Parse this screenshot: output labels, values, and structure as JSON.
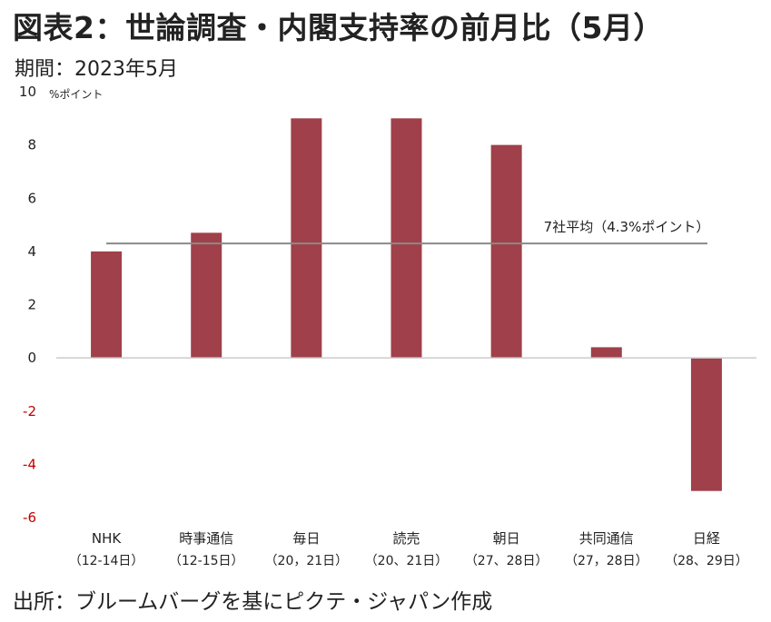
{
  "header": {
    "title": "図表2：世論調査・内閣支持率の前月比（5月）",
    "period": "期間：2023年5月"
  },
  "footer": {
    "source": "出所：ブルームバーグを基にピクテ・ジャパン作成"
  },
  "colors": {
    "bar": "#a0404a",
    "axis": "#cccccc",
    "average_line": "#8a8a8a",
    "negative_tick": "#c00000",
    "text": "#222222"
  },
  "chart_data": {
    "type": "bar",
    "unit_label": "%ポイント",
    "categories": [
      {
        "name": "NHK",
        "dates": "（12-14日）"
      },
      {
        "name": "時事通信",
        "dates": "（12-15日）"
      },
      {
        "name": "毎日",
        "dates": "（20，21日）"
      },
      {
        "name": "読売",
        "dates": "（20、21日）"
      },
      {
        "name": "朝日",
        "dates": "（27、28日）"
      },
      {
        "name": "共同通信",
        "dates": "（27，28日）"
      },
      {
        "name": "日経",
        "dates": "（28、29日）"
      }
    ],
    "values": [
      4,
      4.7,
      9,
      9,
      8,
      0.4,
      -5
    ],
    "ylim": [
      -6,
      10
    ],
    "yticks": [
      10,
      8,
      6,
      4,
      2,
      0,
      -2,
      -4,
      -6
    ],
    "average": {
      "value": 4.3,
      "label": "7社平均（4.3%ポイント）"
    },
    "grid": false,
    "legend": "none"
  }
}
